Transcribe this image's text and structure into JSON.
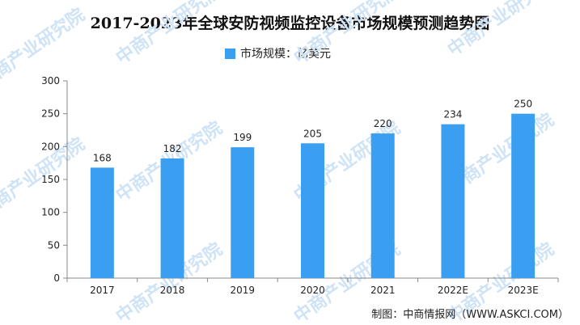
{
  "chart_data": {
    "type": "bar",
    "title": "2017-2023年全球安防视频监控设备市场规模预测趋势图",
    "legend": "市场规模：亿美元",
    "categories": [
      "2017",
      "2018",
      "2019",
      "2020",
      "2021",
      "2022E",
      "2023E"
    ],
    "values": [
      168,
      182,
      199,
      205,
      220,
      234,
      250
    ],
    "ylim": [
      0,
      300
    ],
    "yticks": [
      0,
      50,
      100,
      150,
      200,
      250,
      300
    ],
    "grid": false,
    "legend_position": "top-center",
    "bar_color": "#3a9ff0"
  },
  "source": "制图：中商情报网（WWW.ASKCI.COM）",
  "watermark": "中商产业研究院"
}
